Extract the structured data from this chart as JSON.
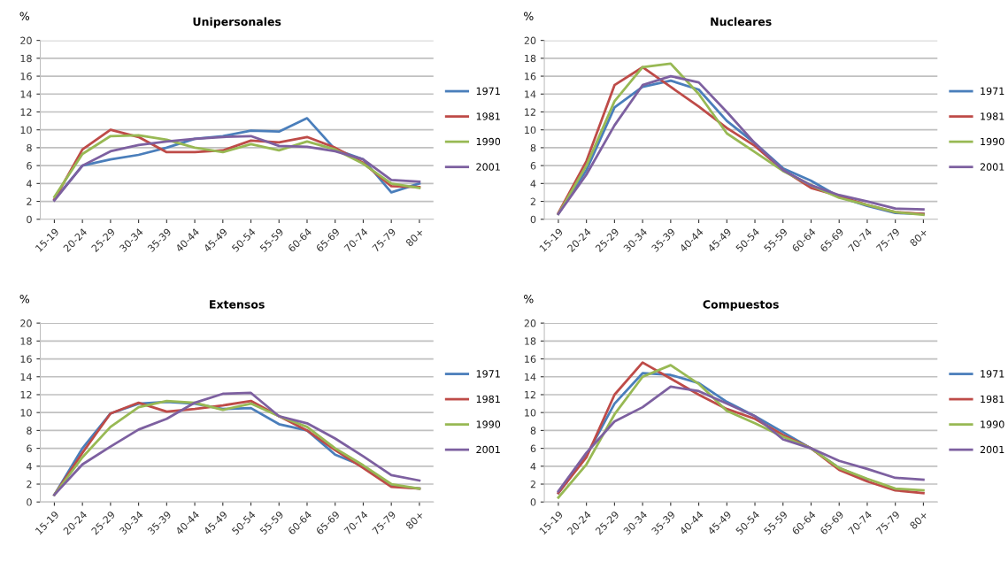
{
  "chart_data": [
    {
      "type": "line",
      "title": "Unipersonales",
      "ylabel": "%",
      "categories": [
        "15-19",
        "20-24",
        "25-29",
        "30-34",
        "35-39",
        "40-44",
        "45-49",
        "50-54",
        "55-59",
        "60-64",
        "65-69",
        "70-74",
        "75-79",
        "80+"
      ],
      "ylim": [
        0,
        20
      ],
      "yticks": [
        0,
        2,
        4,
        6,
        8,
        10,
        12,
        14,
        16,
        18,
        20
      ],
      "grid": "y",
      "legend": "right",
      "series": [
        {
          "name": "1971",
          "color": "#4a7ebb",
          "values": [
            2.2,
            6.0,
            6.7,
            7.2,
            8.0,
            9.0,
            9.3,
            9.9,
            9.8,
            11.3,
            7.8,
            6.7,
            3.0,
            4.0
          ]
        },
        {
          "name": "1981",
          "color": "#be4b48",
          "values": [
            2.2,
            7.8,
            10.0,
            9.2,
            7.5,
            7.5,
            7.7,
            8.8,
            8.6,
            9.2,
            8.0,
            6.3,
            3.7,
            3.6
          ]
        },
        {
          "name": "1990",
          "color": "#98b954",
          "values": [
            2.5,
            7.3,
            9.3,
            9.4,
            8.9,
            8.0,
            7.5,
            8.4,
            7.7,
            8.7,
            7.8,
            6.2,
            4.0,
            3.5
          ]
        },
        {
          "name": "2001",
          "color": "#7d60a0",
          "values": [
            2.1,
            6.0,
            7.6,
            8.3,
            8.7,
            9.0,
            9.2,
            9.3,
            8.2,
            8.1,
            7.6,
            6.7,
            4.4,
            4.2
          ]
        }
      ]
    },
    {
      "type": "line",
      "title": "Nucleares",
      "ylabel": "%",
      "categories": [
        "15-19",
        "20-24",
        "25-29",
        "30-34",
        "35-39",
        "40-44",
        "45-49",
        "50-54",
        "55-59",
        "60-64",
        "65-69",
        "70-74",
        "75-79",
        "80+"
      ],
      "ylim": [
        0,
        20
      ],
      "yticks": [
        0,
        2,
        4,
        6,
        8,
        10,
        12,
        14,
        16,
        18,
        20
      ],
      "grid": "y",
      "legend": "right",
      "series": [
        {
          "name": "1971",
          "color": "#4a7ebb",
          "values": [
            0.6,
            5.5,
            12.5,
            14.8,
            15.5,
            14.5,
            11.0,
            8.5,
            5.7,
            4.3,
            2.5,
            1.5,
            0.7,
            0.6
          ]
        },
        {
          "name": "1981",
          "color": "#be4b48",
          "values": [
            0.7,
            6.5,
            15.0,
            17.0,
            14.8,
            12.6,
            10.2,
            8.2,
            5.5,
            3.5,
            2.6,
            1.6,
            0.8,
            0.6
          ]
        },
        {
          "name": "1990",
          "color": "#98b954",
          "values": [
            0.6,
            6.0,
            13.2,
            17.0,
            17.4,
            14.0,
            9.6,
            7.5,
            5.4,
            3.8,
            2.4,
            1.6,
            0.8,
            0.5
          ]
        },
        {
          "name": "2001",
          "color": "#7d60a0",
          "values": [
            0.6,
            5.0,
            10.5,
            15.0,
            16.0,
            15.3,
            12.0,
            8.5,
            5.5,
            3.8,
            2.7,
            2.0,
            1.2,
            1.1
          ]
        }
      ]
    },
    {
      "type": "line",
      "title": "Extensos",
      "ylabel": "%",
      "categories": [
        "15-19",
        "20-24",
        "25-29",
        "30-34",
        "35-39",
        "40-44",
        "45-49",
        "50-54",
        "55-59",
        "60-64",
        "65-69",
        "70-74",
        "75-79",
        "80+"
      ],
      "ylim": [
        0,
        20
      ],
      "yticks": [
        0,
        2,
        4,
        6,
        8,
        10,
        12,
        14,
        16,
        18,
        20
      ],
      "grid": "y",
      "legend": "right",
      "series": [
        {
          "name": "1971",
          "color": "#4a7ebb",
          "values": [
            0.8,
            6.0,
            9.9,
            11.0,
            11.2,
            11.0,
            10.4,
            10.5,
            8.7,
            8.0,
            5.3,
            4.0,
            1.8,
            1.5
          ]
        },
        {
          "name": "1981",
          "color": "#be4b48",
          "values": [
            0.8,
            5.5,
            9.9,
            11.1,
            10.1,
            10.4,
            10.8,
            11.3,
            9.6,
            8.0,
            5.8,
            3.8,
            1.7,
            1.5
          ]
        },
        {
          "name": "1990",
          "color": "#98b954",
          "values": [
            0.8,
            5.0,
            8.4,
            10.6,
            11.3,
            11.1,
            10.3,
            11.0,
            9.6,
            8.4,
            6.0,
            4.1,
            2.0,
            1.5
          ]
        },
        {
          "name": "2001",
          "color": "#7d60a0",
          "values": [
            0.8,
            4.2,
            6.2,
            8.1,
            9.3,
            11.1,
            12.1,
            12.2,
            9.6,
            8.8,
            7.1,
            5.1,
            3.0,
            2.4
          ]
        }
      ]
    },
    {
      "type": "line",
      "title": "Compuestos",
      "ylabel": "%",
      "categories": [
        "15-19",
        "20-24",
        "25-29",
        "30-34",
        "35-39",
        "40-44",
        "45-49",
        "50-54",
        "55-59",
        "60-64",
        "65-69",
        "70-74",
        "75-79",
        "80+"
      ],
      "ylim": [
        0,
        20
      ],
      "yticks": [
        0,
        2,
        4,
        6,
        8,
        10,
        12,
        14,
        16,
        18,
        20
      ],
      "grid": "y",
      "legend": "right",
      "series": [
        {
          "name": "1971",
          "color": "#4a7ebb",
          "values": [
            1.0,
            5.2,
            11.0,
            14.4,
            14.2,
            13.3,
            11.2,
            9.6,
            7.8,
            6.0,
            3.8,
            2.5,
            null,
            null
          ]
        },
        {
          "name": "1981",
          "color": "#be4b48",
          "values": [
            1.0,
            5.0,
            12.0,
            15.6,
            13.8,
            12.0,
            10.4,
            9.3,
            7.5,
            6.0,
            3.6,
            2.3,
            1.3,
            1.0
          ]
        },
        {
          "name": "1990",
          "color": "#98b954",
          "values": [
            0.5,
            4.2,
            9.8,
            14.0,
            15.3,
            13.2,
            10.2,
            8.8,
            7.3,
            6.0,
            3.8,
            2.6,
            1.5,
            1.3
          ]
        },
        {
          "name": "2001",
          "color": "#7d60a0",
          "values": [
            1.2,
            5.5,
            9.0,
            10.6,
            12.9,
            12.4,
            11.0,
            9.6,
            7.0,
            6.0,
            4.6,
            3.7,
            2.7,
            2.5
          ]
        }
      ]
    }
  ]
}
